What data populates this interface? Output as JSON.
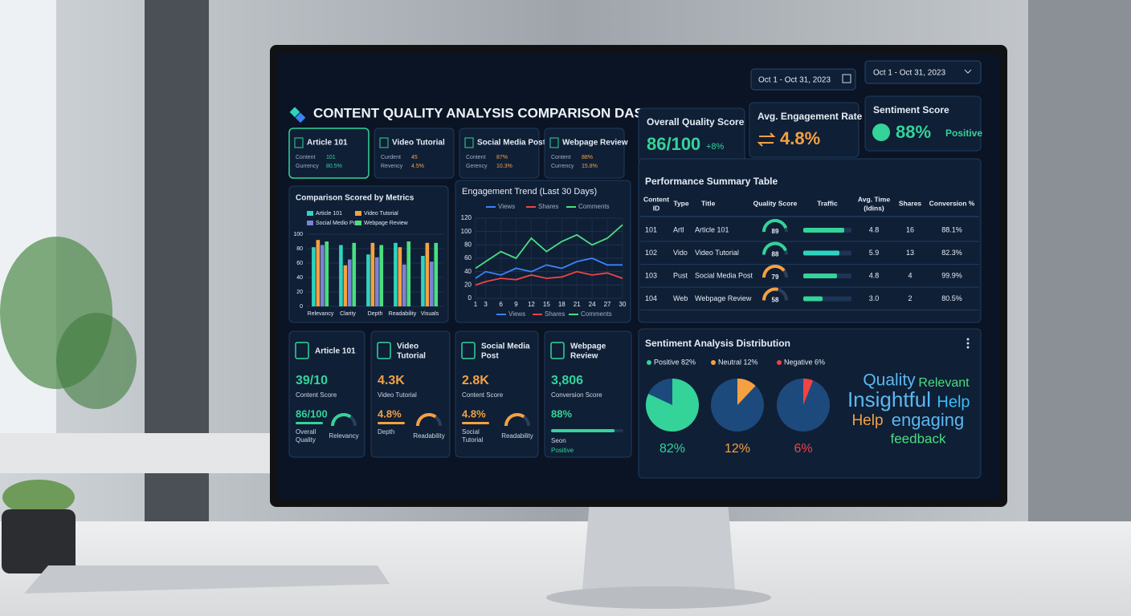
{
  "header": {
    "title": "CONTENT QUALITY ANALYSIS COMPARISON DASHBOARD",
    "date_range": [
      "Oct 1 - Oct 31, 2023",
      "Oct 1 - Oct 31, 2023"
    ]
  },
  "tabs": [
    {
      "title": "Article 101",
      "rows": [
        [
          "Content",
          "101"
        ],
        [
          "Gurrency",
          "80.5%"
        ]
      ]
    },
    {
      "title": "Video Tutorial",
      "rows": [
        [
          "Curdent",
          "45"
        ],
        [
          "Revency",
          "4.5%"
        ]
      ]
    },
    {
      "title": "Social Media Post",
      "rows": [
        [
          "Content",
          "87%"
        ],
        [
          "Gerency",
          "10.3%"
        ]
      ]
    },
    {
      "title": "Webpage Review",
      "rows": [
        [
          "Content",
          "88%"
        ],
        [
          "Currency",
          "15.8%"
        ]
      ]
    }
  ],
  "kpis": [
    {
      "title": "Overall Quality Score",
      "value": "86/100",
      "delta": "+8%"
    },
    {
      "title": "Avg. Engagement Rate",
      "value": "4.8%"
    },
    {
      "title": "Sentiment Score",
      "value": "88%",
      "note": "Positive"
    }
  ],
  "chart_data": [
    {
      "type": "bar",
      "title": "Comparison Scored by Metrics",
      "categories": [
        "Relevancy",
        "Clarity",
        "Depth",
        "Readability",
        "Visuals"
      ],
      "series": [
        {
          "name": "Article 101",
          "color": "#2dd4bf",
          "values": [
            82,
            85,
            72,
            88,
            70
          ]
        },
        {
          "name": "Video Tutorial",
          "color": "#f5a142",
          "values": [
            92,
            57,
            88,
            82,
            88
          ]
        },
        {
          "name": "Social Medio Post",
          "color": "#7c83d6",
          "values": [
            85,
            65,
            68,
            58,
            62
          ]
        },
        {
          "name": "Webpage Review",
          "color": "#4ade80",
          "values": [
            90,
            88,
            85,
            90,
            88
          ]
        }
      ],
      "ylim": [
        0,
        100
      ],
      "yticks": [
        0,
        20,
        40,
        60,
        80,
        100
      ],
      "grid": true
    },
    {
      "type": "line",
      "title": "Engagement Trend (Last 30 Days)",
      "x": [
        1,
        3,
        6,
        9,
        12,
        15,
        18,
        21,
        24,
        27,
        30
      ],
      "series": [
        {
          "name": "Views",
          "color": "#3b82f6",
          "values": [
            30,
            40,
            35,
            45,
            40,
            50,
            45,
            55,
            60,
            50,
            50
          ]
        },
        {
          "name": "Shares",
          "color": "#ef4444",
          "values": [
            20,
            25,
            30,
            28,
            35,
            30,
            32,
            40,
            35,
            38,
            30
          ]
        },
        {
          "name": "Comments",
          "color": "#4ade80",
          "values": [
            45,
            55,
            70,
            60,
            90,
            70,
            85,
            95,
            80,
            90,
            110
          ]
        }
      ],
      "xlim": [
        1,
        30
      ],
      "xticks": [
        1,
        3,
        6,
        9,
        12,
        15,
        18,
        21,
        24,
        27,
        30
      ],
      "ylim": [
        0,
        120
      ],
      "yticks": [
        0,
        20,
        40,
        60,
        80,
        100,
        120
      ],
      "grid": true
    },
    {
      "type": "pie",
      "title": "Sentiment Analysis Distribution",
      "categories": [
        "Positive 82%",
        "Neutral 12%",
        "Negative 6%"
      ],
      "values": [
        82,
        12,
        6
      ],
      "value_labels": [
        "82%",
        "12%",
        "6%"
      ],
      "colors": [
        "#34d399",
        "#f5a142",
        "#ef4444"
      ]
    }
  ],
  "table": {
    "title": "Performance Summary Table",
    "headers": [
      [
        "Content",
        "ID"
      ],
      [
        "Type"
      ],
      [
        "Title"
      ],
      [
        "Quality Score"
      ],
      [
        "Traffic"
      ],
      [
        "Avg. Time",
        "(Idins)"
      ],
      [
        "Shares"
      ],
      [
        "Conversion %"
      ]
    ],
    "rows": [
      [
        "101",
        "Artl",
        "Article 101",
        89,
        85,
        "4.8",
        "16",
        "88.1%"
      ],
      [
        "102",
        "Vido",
        "Video Tutorial",
        88,
        75,
        "5.9",
        "13",
        "82.3%"
      ],
      [
        "103",
        "Pust",
        "Social Media Post",
        79,
        70,
        "4.8",
        "4",
        "99.9%"
      ],
      [
        "104",
        "Web",
        "Webpage Review",
        58,
        40,
        "3.0",
        "2",
        "80.5%"
      ]
    ]
  },
  "cards": [
    {
      "title": [
        "Article 101"
      ],
      "big": "39/10",
      "big_label": "Content Score",
      "sub": "86/100",
      "sub_label": [
        "Overall",
        "Quality"
      ],
      "gauge_label": "Relevancy",
      "accent": "#34d399"
    },
    {
      "title": [
        "Video",
        "Tutorial"
      ],
      "big": "4.3K",
      "big_label": "Video Tutorial",
      "sub": "4.8%",
      "sub_label": [
        "Depth"
      ],
      "gauge_label": "Readability",
      "accent": "#f5a142"
    },
    {
      "title": [
        "Social Media",
        "Post"
      ],
      "big": "2.8K",
      "big_label": "Content Score",
      "sub": "4.8%",
      "sub_label": [
        "Social",
        "Tutorial"
      ],
      "gauge_label": "Readability",
      "accent": "#f5a142"
    },
    {
      "title": [
        "Webpage",
        "Review"
      ],
      "big": "3,806",
      "big_label": "Conversion Score",
      "sub": "88%",
      "sub_label": [
        "Seon"
      ],
      "gauge_label": "Positive",
      "accent": "#34d399",
      "progress": 88
    }
  ],
  "word_cloud": [
    "Quality",
    "Relevant",
    "Insightful",
    "Help",
    "Help",
    "engaging",
    "feedback"
  ]
}
